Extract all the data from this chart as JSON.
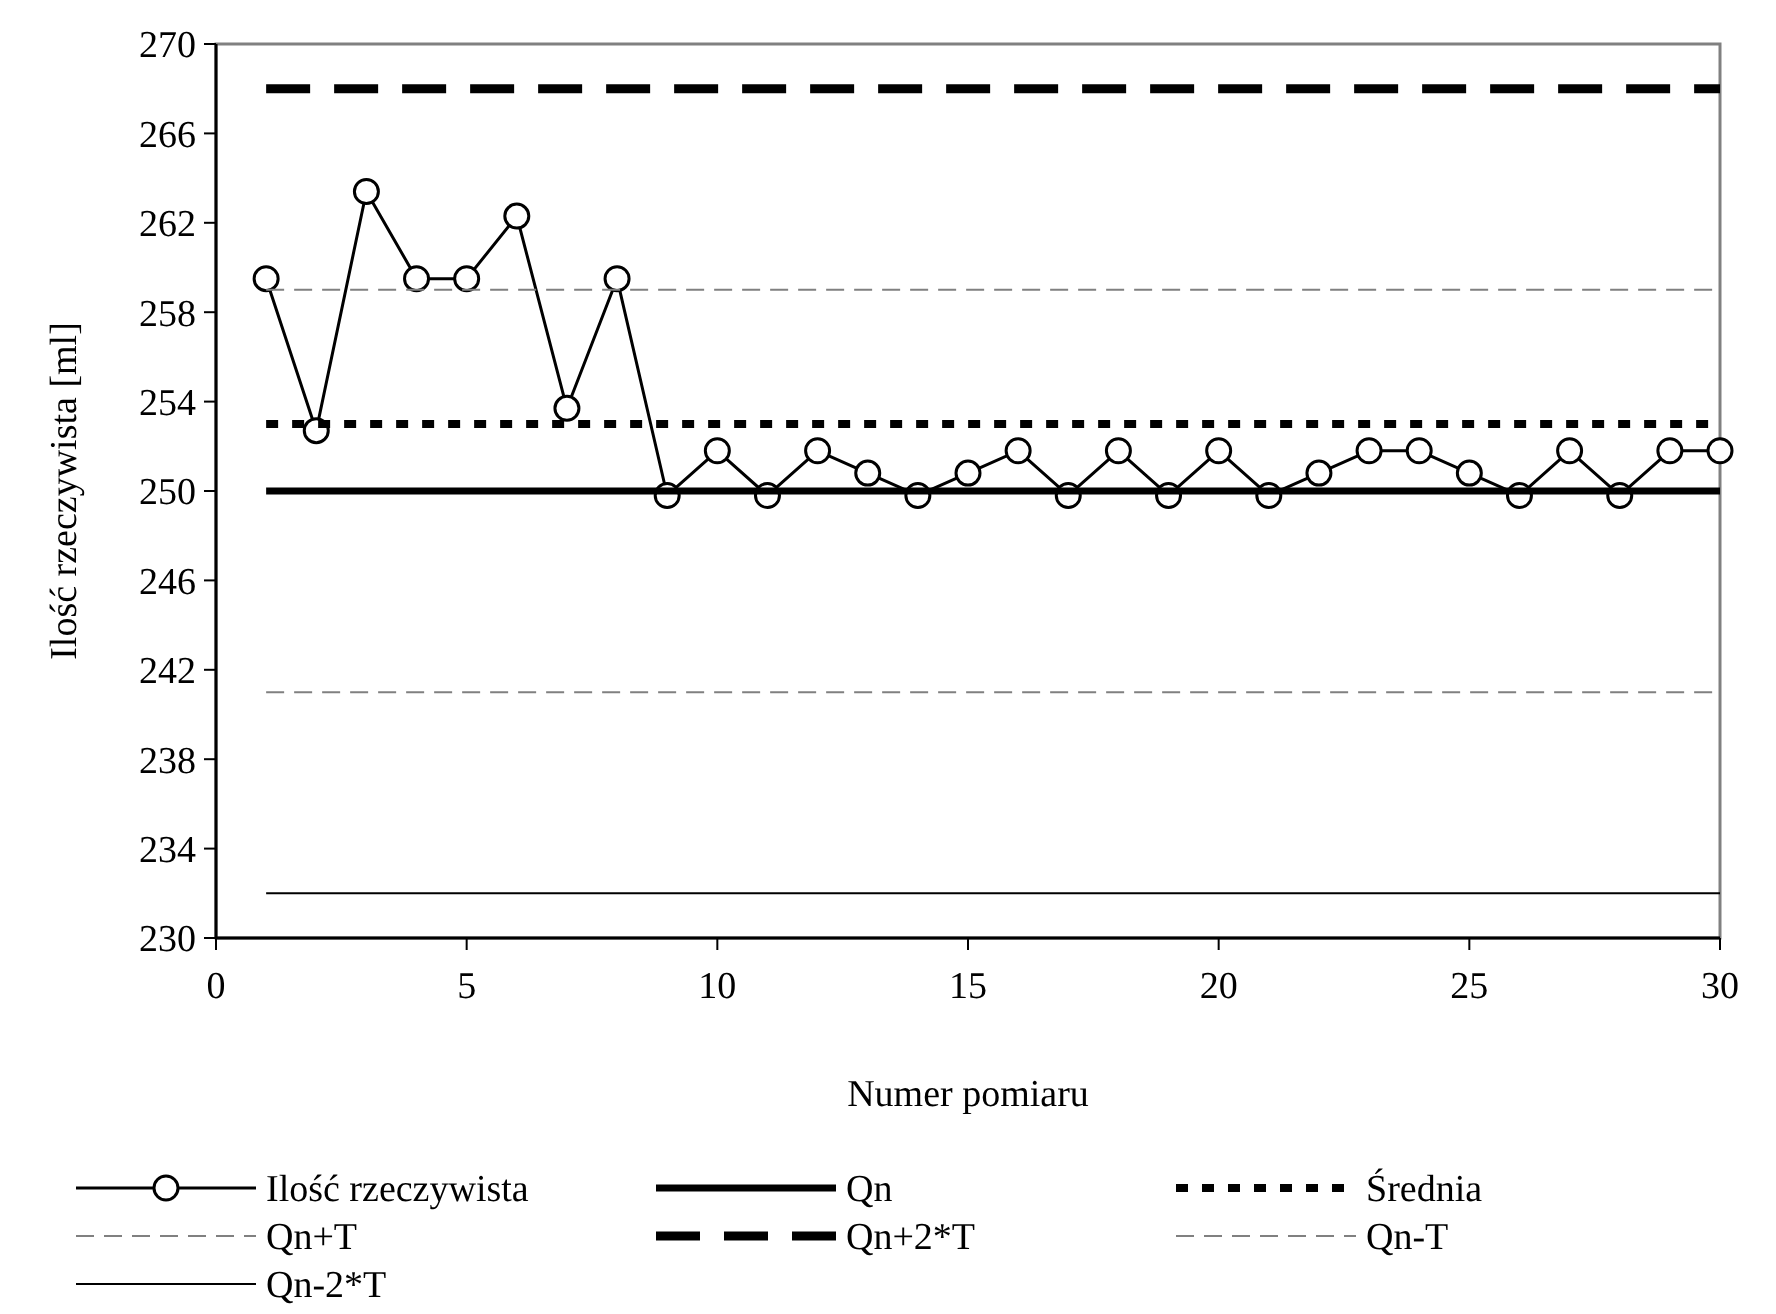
{
  "chart_data": {
    "type": "line",
    "xlabel": "Numer pomiaru",
    "ylabel": "Ilość rzeczywista [ml]",
    "xlim": [
      0,
      30
    ],
    "xticks": [
      0,
      5,
      10,
      15,
      20,
      25,
      30
    ],
    "ylim": [
      230,
      270
    ],
    "yticks": [
      230,
      234,
      238,
      242,
      246,
      250,
      254,
      258,
      262,
      266,
      270
    ],
    "grid": false,
    "legend": "bottom",
    "series": [
      {
        "name": "Ilość rzeczywista",
        "color": "#000000",
        "marker": "circle",
        "line_style": "solid",
        "x": [
          1,
          2,
          3,
          4,
          5,
          6,
          7,
          8,
          9,
          10,
          11,
          12,
          13,
          14,
          15,
          16,
          17,
          18,
          19,
          20,
          21,
          22,
          23,
          24,
          25,
          26,
          27,
          28,
          29,
          30
        ],
        "values": [
          259.5,
          252.7,
          263.4,
          259.5,
          259.5,
          262.3,
          253.7,
          259.5,
          249.8,
          251.8,
          249.8,
          251.8,
          250.8,
          249.8,
          250.8,
          251.8,
          249.8,
          251.8,
          249.8,
          251.8,
          249.8,
          250.8,
          251.8,
          251.8,
          250.8,
          249.8,
          251.8,
          249.8,
          251.8,
          251.8
        ]
      },
      {
        "name": "Qn",
        "color": "#000000",
        "marker": "none",
        "line_style": "solid",
        "x": [
          1,
          30
        ],
        "values": [
          250,
          250
        ]
      },
      {
        "name": "Średnia",
        "color": "#000000",
        "marker": "none",
        "line_style": "dotted",
        "x": [
          1,
          30
        ],
        "values": [
          253,
          253
        ]
      },
      {
        "name": "Qn+T",
        "color": "#808080",
        "marker": "none",
        "line_style": "dashed",
        "x": [
          1,
          30
        ],
        "values": [
          259,
          259
        ]
      },
      {
        "name": "Qn+2*T",
        "color": "#000000",
        "marker": "none",
        "line_style": "dashed",
        "x": [
          1,
          30
        ],
        "values": [
          268,
          268
        ]
      },
      {
        "name": "Qn-T",
        "color": "#808080",
        "marker": "none",
        "line_style": "dashed",
        "x": [
          1,
          30
        ],
        "values": [
          241,
          241
        ]
      },
      {
        "name": "Qn-2*T",
        "color": "#000000",
        "marker": "none",
        "line_style": "solid",
        "x": [
          1,
          30
        ],
        "values": [
          232,
          232
        ]
      }
    ]
  }
}
